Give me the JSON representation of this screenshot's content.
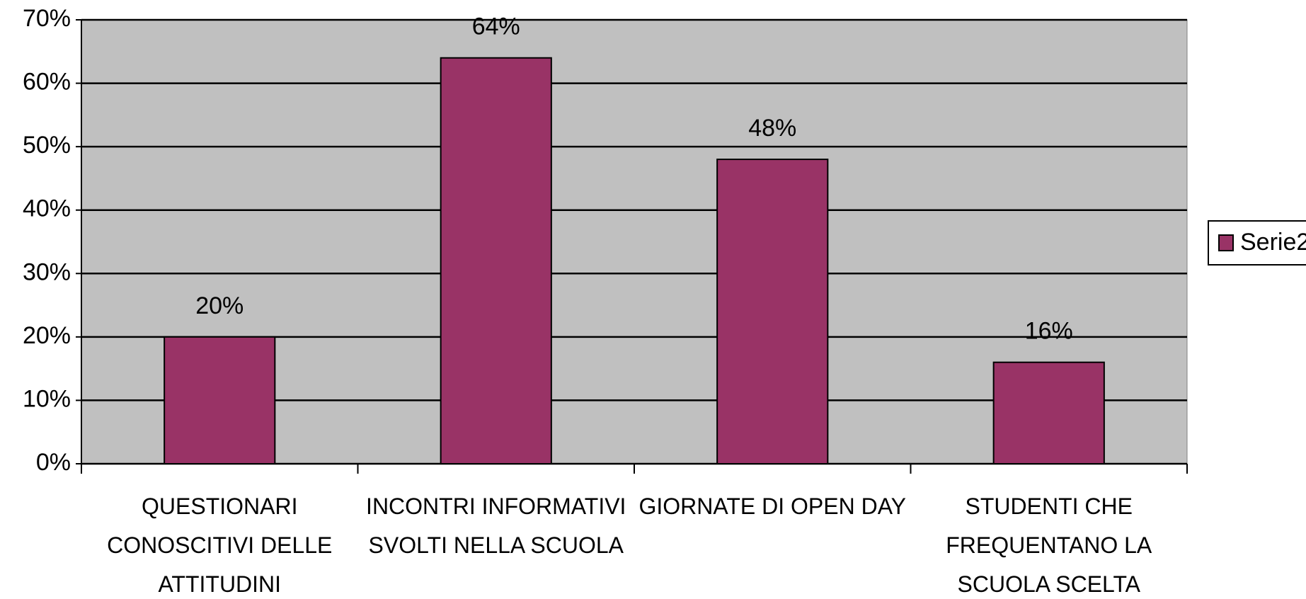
{
  "chart_data": {
    "type": "bar",
    "categories": [
      "QUESTIONARI CONOSCITIVI DELLE ATTITUDINI",
      "INCONTRI INFORMATIVI SVOLTI NELLA SCUOLA",
      "GIORNATE DI OPEN DAY",
      "STUDENTI CHE FREQUENTANO LA SCUOLA SCELTA"
    ],
    "series": [
      {
        "name": "Serie2",
        "color": "#993366",
        "values": [
          20,
          64,
          48,
          16
        ],
        "value_labels": [
          "20%",
          "64%",
          "48%",
          "16%"
        ]
      }
    ],
    "ylim": [
      0,
      70
    ],
    "yticks": [
      {
        "value": 0,
        "label": "0%"
      },
      {
        "value": 10,
        "label": "10%"
      },
      {
        "value": 20,
        "label": "20%"
      },
      {
        "value": 30,
        "label": "30%"
      },
      {
        "value": 40,
        "label": "40%"
      },
      {
        "value": 50,
        "label": "50%"
      },
      {
        "value": 60,
        "label": "60%"
      },
      {
        "value": 70,
        "label": "70%"
      }
    ],
    "grid": true,
    "legend": "right",
    "background": "#c0c0c0"
  }
}
